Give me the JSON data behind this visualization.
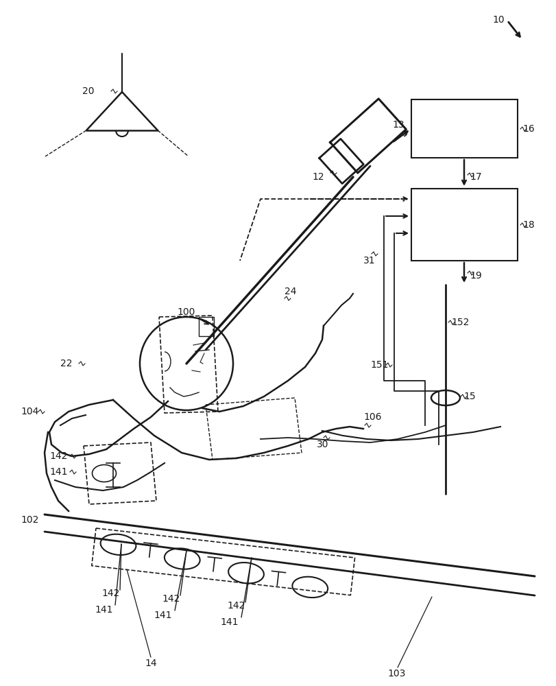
{
  "bg_color": "#ffffff",
  "lc": "#1a1a1a",
  "lw": 1.5,
  "fs": 10,
  "figsize": [
    8.11,
    10.0
  ],
  "dpi": 100
}
